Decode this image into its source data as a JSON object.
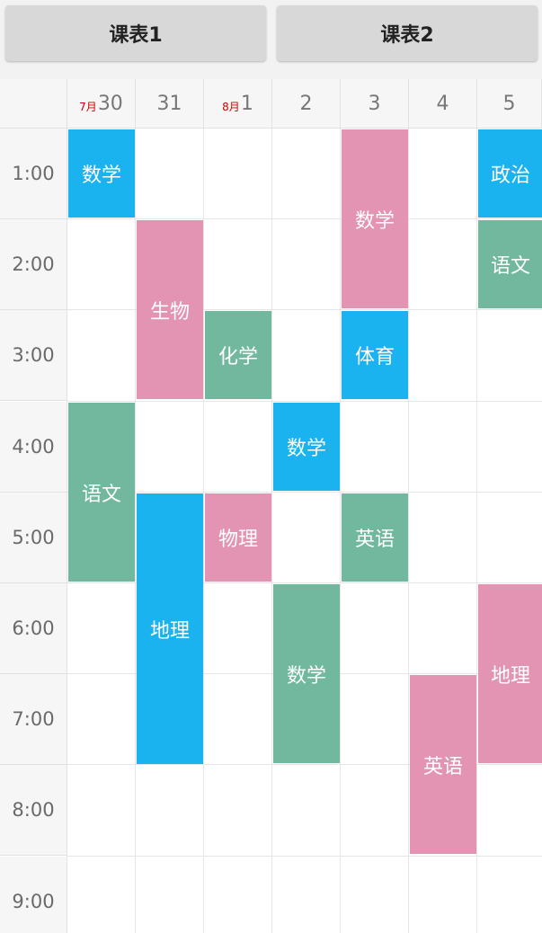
{
  "tabs": [
    {
      "label": "课表1"
    },
    {
      "label": "课表2"
    }
  ],
  "days": [
    {
      "month": "7月",
      "day": "30"
    },
    {
      "month": "",
      "day": "31"
    },
    {
      "month": "8月",
      "day": "1"
    },
    {
      "month": "",
      "day": "2"
    },
    {
      "month": "",
      "day": "3"
    },
    {
      "month": "",
      "day": "4"
    },
    {
      "month": "",
      "day": "5"
    }
  ],
  "times": [
    "1:00",
    "2:00",
    "3:00",
    "4:00",
    "5:00",
    "6:00",
    "7:00",
    "8:00",
    "9:00"
  ],
  "colors": {
    "blue": "#1ab3ef",
    "pink": "#e294b2",
    "green": "#72b89f"
  },
  "courses": [
    {
      "name": "数学",
      "day": 0,
      "start": 0,
      "span": 1,
      "color": "blue"
    },
    {
      "name": "语文",
      "day": 0,
      "start": 3,
      "span": 2,
      "color": "green"
    },
    {
      "name": "生物",
      "day": 1,
      "start": 1,
      "span": 2,
      "color": "pink"
    },
    {
      "name": "地理",
      "day": 1,
      "start": 4,
      "span": 3,
      "color": "blue"
    },
    {
      "name": "化学",
      "day": 2,
      "start": 2,
      "span": 1,
      "color": "green"
    },
    {
      "name": "物理",
      "day": 2,
      "start": 4,
      "span": 1,
      "color": "pink"
    },
    {
      "name": "数学",
      "day": 3,
      "start": 3,
      "span": 1,
      "color": "blue"
    },
    {
      "name": "数学",
      "day": 3,
      "start": 5,
      "span": 2,
      "color": "green"
    },
    {
      "name": "数学",
      "day": 4,
      "start": 0,
      "span": 2,
      "color": "pink"
    },
    {
      "name": "体育",
      "day": 4,
      "start": 2,
      "span": 1,
      "color": "blue"
    },
    {
      "name": "英语",
      "day": 4,
      "start": 4,
      "span": 1,
      "color": "green"
    },
    {
      "name": "英语",
      "day": 5,
      "start": 6,
      "span": 2,
      "color": "pink"
    },
    {
      "name": "政治",
      "day": 6,
      "start": 0,
      "span": 1,
      "color": "blue"
    },
    {
      "name": "语文",
      "day": 6,
      "start": 1,
      "span": 1,
      "color": "green"
    },
    {
      "name": "地理",
      "day": 6,
      "start": 5,
      "span": 2,
      "color": "pink"
    }
  ]
}
